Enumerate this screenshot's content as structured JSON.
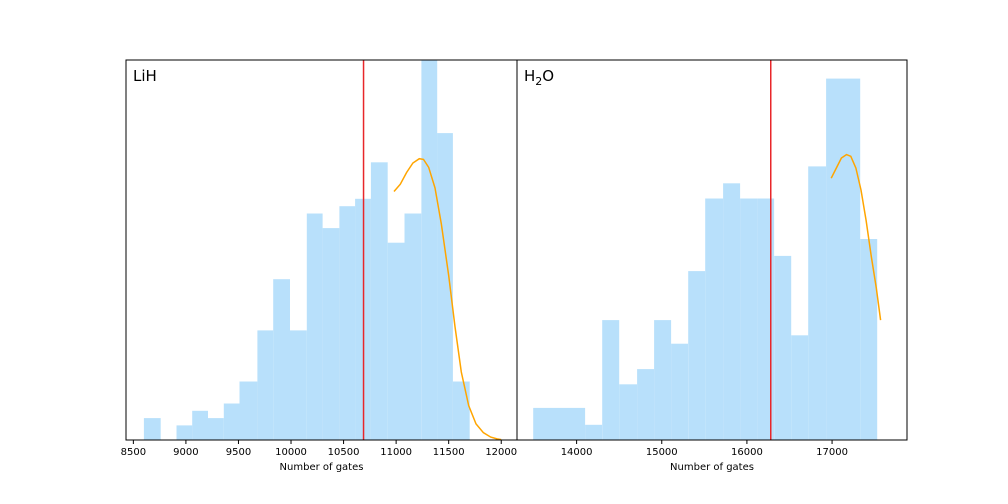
{
  "chart_data": [
    {
      "type": "histogram",
      "title": "LiH",
      "title_parts": {
        "base": "LiH",
        "sub": "",
        "rest": ""
      },
      "xlabel": "Number of gates",
      "xlim": [
        8430,
        12150
      ],
      "ylim": [
        0,
        52
      ],
      "xticks": [
        8500,
        9000,
        9500,
        10000,
        10500,
        11000,
        11500,
        12000
      ],
      "ytick_labels_shown": false,
      "bar_color": "#b8e0fb",
      "bars": [
        {
          "x0": 8600,
          "x1": 8760,
          "value": 3
        },
        {
          "x0": 8910,
          "x1": 9060,
          "value": 2
        },
        {
          "x0": 9060,
          "x1": 9210,
          "value": 4
        },
        {
          "x0": 9210,
          "x1": 9360,
          "value": 3
        },
        {
          "x0": 9360,
          "x1": 9510,
          "value": 5
        },
        {
          "x0": 9510,
          "x1": 9680,
          "value": 8
        },
        {
          "x0": 9680,
          "x1": 9830,
          "value": 15
        },
        {
          "x0": 9830,
          "x1": 9990,
          "value": 22
        },
        {
          "x0": 9990,
          "x1": 10150,
          "value": 15
        },
        {
          "x0": 10150,
          "x1": 10300,
          "value": 31
        },
        {
          "x0": 10300,
          "x1": 10460,
          "value": 29
        },
        {
          "x0": 10460,
          "x1": 10610,
          "value": 32
        },
        {
          "x0": 10610,
          "x1": 10760,
          "value": 33
        },
        {
          "x0": 10760,
          "x1": 10920,
          "value": 38
        },
        {
          "x0": 10920,
          "x1": 11080,
          "value": 27
        },
        {
          "x0": 11080,
          "x1": 11240,
          "value": 31
        },
        {
          "x0": 11240,
          "x1": 11390,
          "value": 52
        },
        {
          "x0": 11390,
          "x1": 11540,
          "value": 42
        },
        {
          "x0": 11540,
          "x1": 11700,
          "value": 8
        }
      ],
      "vline": {
        "x": 10690,
        "color": "#e8262a"
      },
      "fit_curve": {
        "color": "#ffa500",
        "points": [
          [
            10980,
            34
          ],
          [
            11040,
            35
          ],
          [
            11100,
            36.6
          ],
          [
            11160,
            37.9
          ],
          [
            11220,
            38.5
          ],
          [
            11260,
            38.4
          ],
          [
            11310,
            37.3
          ],
          [
            11370,
            34.5
          ],
          [
            11430,
            29.6
          ],
          [
            11500,
            22.5
          ],
          [
            11560,
            15.5
          ],
          [
            11620,
            9.3
          ],
          [
            11690,
            4.7
          ],
          [
            11760,
            2.2
          ],
          [
            11830,
            1
          ],
          [
            11900,
            0.4
          ],
          [
            11960,
            0.15
          ],
          [
            12000,
            0.05
          ]
        ]
      }
    },
    {
      "type": "histogram",
      "title": "H2O",
      "title_parts": {
        "base": "H",
        "sub": "2",
        "rest": "O"
      },
      "xlabel": "Number of gates",
      "xlim": [
        13300,
        17880
      ],
      "ylim": [
        0,
        22.5
      ],
      "xticks": [
        14000,
        15000,
        16000,
        17000
      ],
      "ytick_labels_shown": false,
      "bar_color": "#b8e0fb",
      "bars": [
        {
          "x0": 13490,
          "x1": 14100,
          "value": 1.9
        },
        {
          "x0": 14100,
          "x1": 14300,
          "value": 0.9
        },
        {
          "x0": 14300,
          "x1": 14500,
          "value": 7.1
        },
        {
          "x0": 14500,
          "x1": 14710,
          "value": 3.3
        },
        {
          "x0": 14710,
          "x1": 14910,
          "value": 4.2
        },
        {
          "x0": 14910,
          "x1": 15110,
          "value": 7.1
        },
        {
          "x0": 15110,
          "x1": 15310,
          "value": 5.7
        },
        {
          "x0": 15310,
          "x1": 15510,
          "value": 10
        },
        {
          "x0": 15510,
          "x1": 15720,
          "value": 14.3
        },
        {
          "x0": 15720,
          "x1": 15920,
          "value": 15.2
        },
        {
          "x0": 15920,
          "x1": 16120,
          "value": 14.3
        },
        {
          "x0": 16120,
          "x1": 16320,
          "value": 14.3
        },
        {
          "x0": 16320,
          "x1": 16520,
          "value": 10.9
        },
        {
          "x0": 16520,
          "x1": 16720,
          "value": 6.2
        },
        {
          "x0": 16720,
          "x1": 16930,
          "value": 16.2
        },
        {
          "x0": 16930,
          "x1": 17330,
          "value": 21.4
        },
        {
          "x0": 17330,
          "x1": 17530,
          "value": 11.9
        }
      ],
      "vline": {
        "x": 16280,
        "color": "#e8262a"
      },
      "fit_curve": {
        "color": "#ffa500",
        "points": [
          [
            16990,
            15.5
          ],
          [
            17050,
            16.1
          ],
          [
            17110,
            16.7
          ],
          [
            17170,
            16.9
          ],
          [
            17220,
            16.8
          ],
          [
            17280,
            16.1
          ],
          [
            17340,
            14.8
          ],
          [
            17400,
            13
          ],
          [
            17460,
            10.9
          ],
          [
            17520,
            9
          ],
          [
            17570,
            7.1
          ]
        ]
      }
    }
  ]
}
